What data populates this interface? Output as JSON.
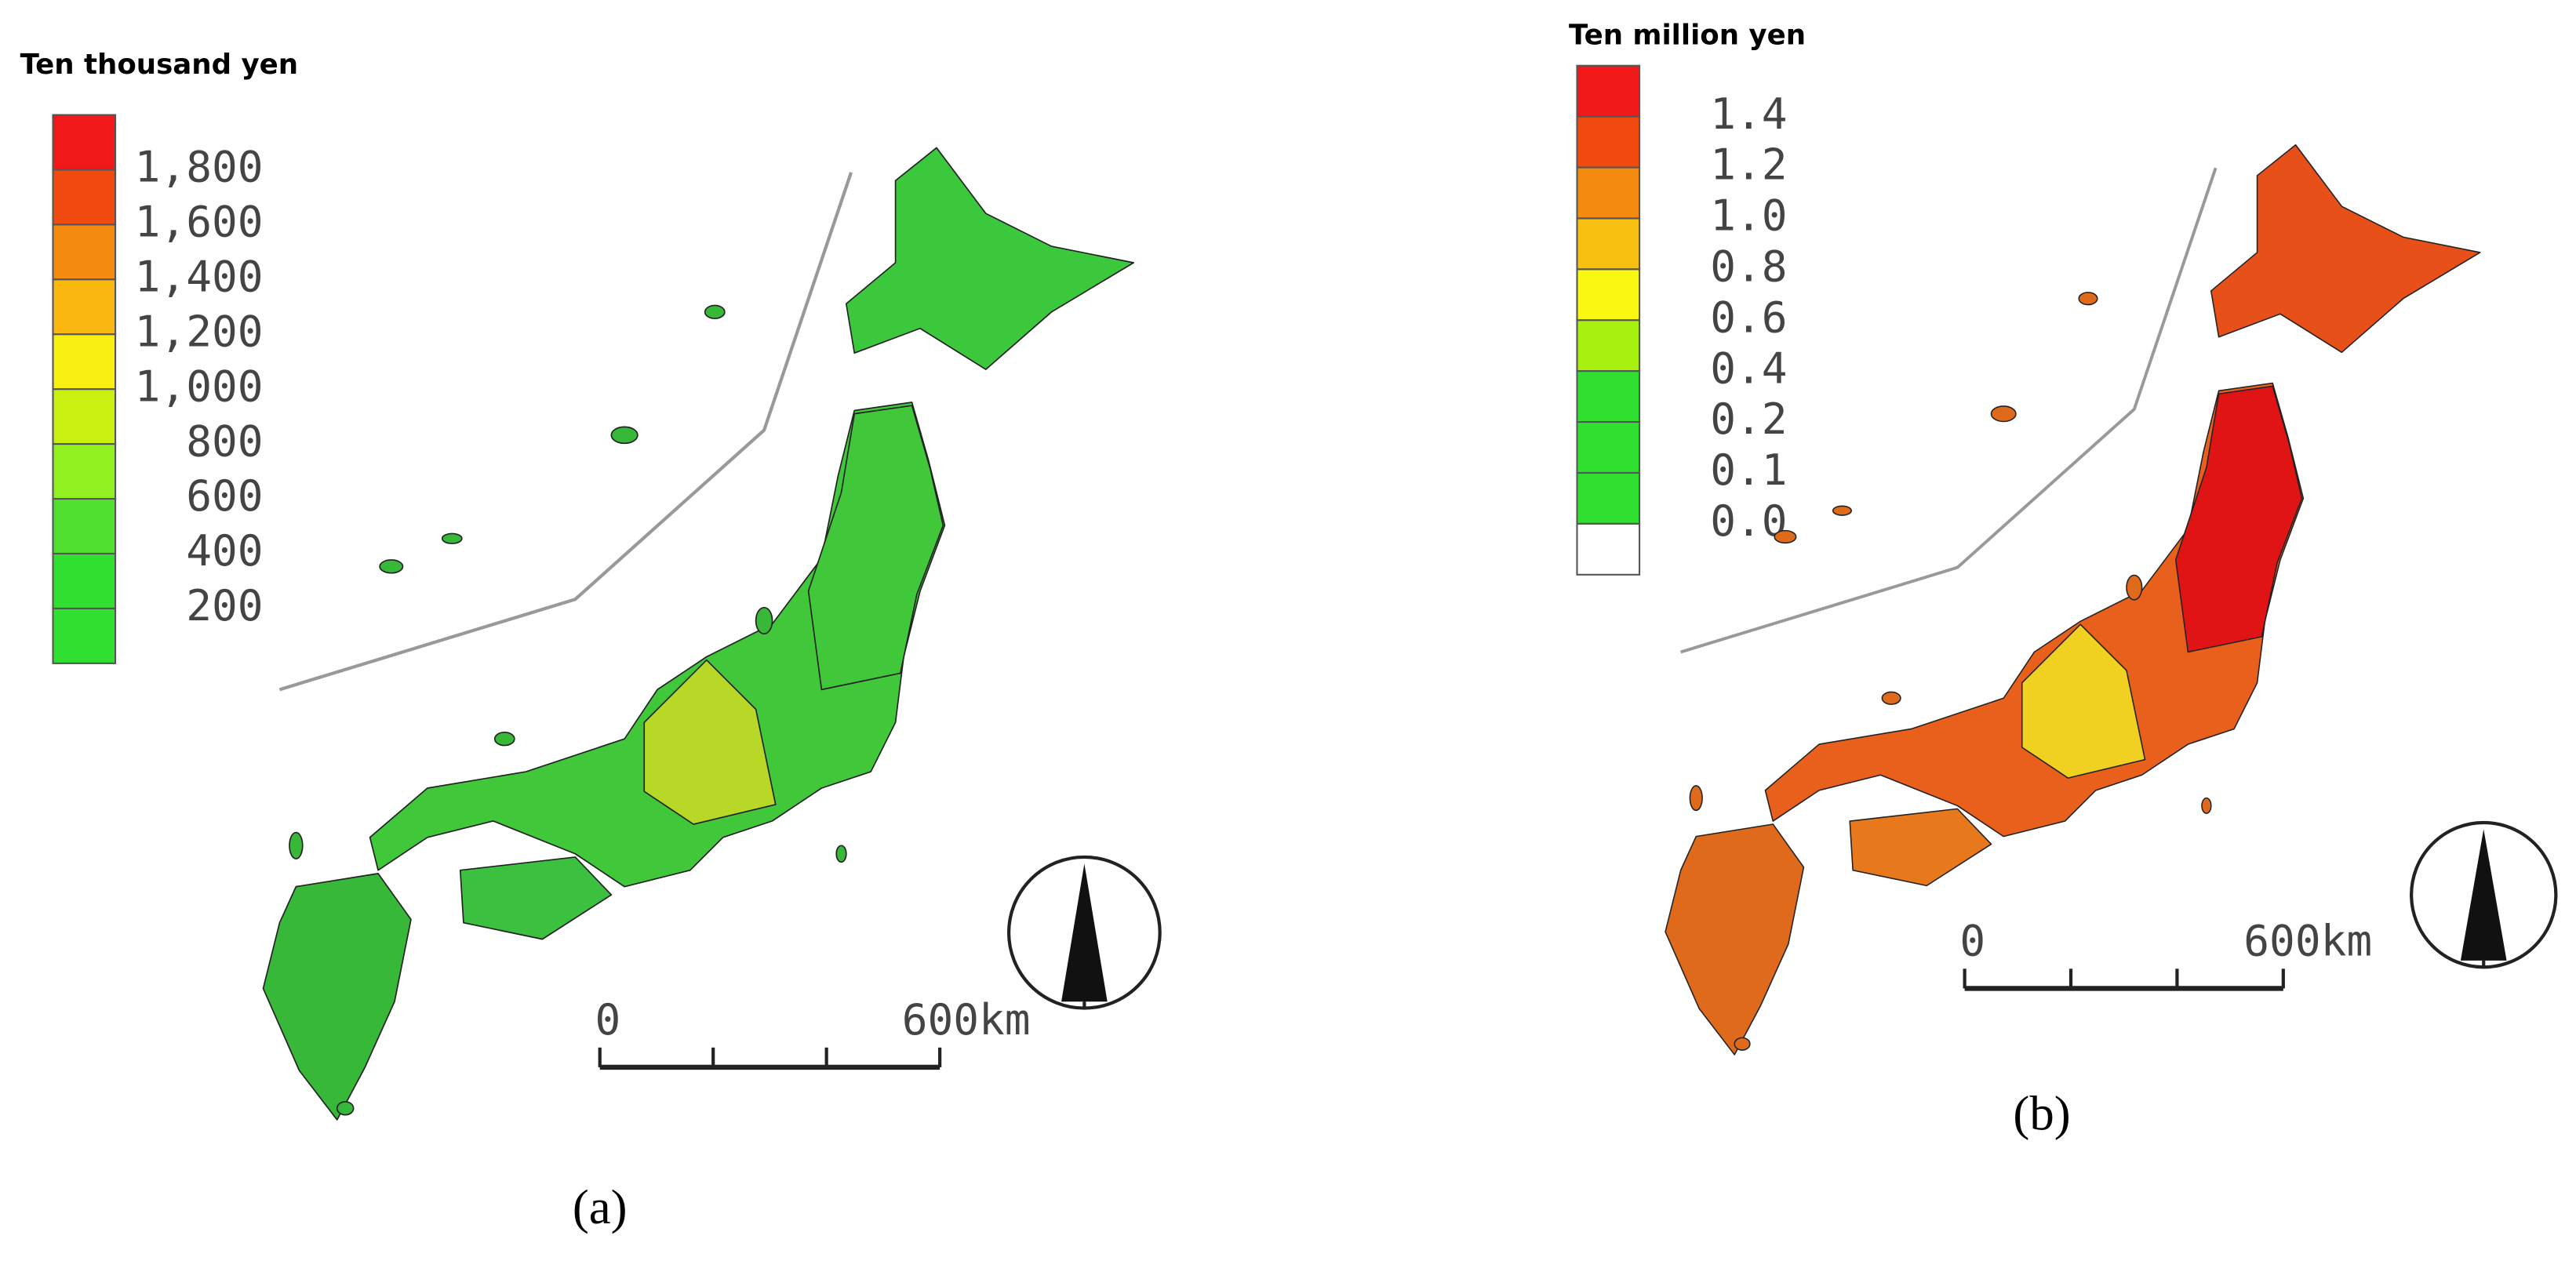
{
  "panels": [
    {
      "label": "(a)",
      "legend": {
        "title": "Ten thousand yen",
        "colors": [
          "#f01818",
          "#f04a10",
          "#f58a10",
          "#f8b810",
          "#f8f010",
          "#c8f010",
          "#90f020",
          "#50e030",
          "#30e030",
          "#30e030"
        ],
        "labels": [
          "1,800",
          "1,600",
          "1,400",
          "1,200",
          "1,000",
          "800",
          "600",
          "400",
          "200"
        ]
      },
      "scale_bar": {
        "start": "0",
        "end": "600km"
      }
    },
    {
      "label": "(b)",
      "legend": {
        "title": "Ten million yen",
        "colors": [
          "#f01818",
          "#f04a10",
          "#f58a10",
          "#f8c010",
          "#f8f810",
          "#a8f010",
          "#30e030",
          "#30e030",
          "#30e030",
          "#ffffff"
        ],
        "labels": [
          "1.4",
          "1.2",
          "1.0",
          "0.8",
          "0.6",
          "0.4",
          "0.2",
          "0.1",
          "0.0"
        ]
      },
      "scale_bar": {
        "start": "0",
        "end": "600km"
      }
    }
  ]
}
